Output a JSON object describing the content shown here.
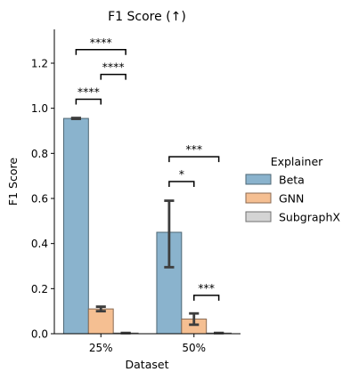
{
  "chart_data": {
    "type": "bar",
    "title": "F1 Score (↑)",
    "xlabel": "Dataset",
    "ylabel": "F1 Score",
    "ylim": [
      0,
      1.35
    ],
    "yticks": [
      0.0,
      0.2,
      0.4,
      0.6,
      0.8,
      1.0,
      1.2
    ],
    "ytick_labels": [
      "0.0",
      "0.2",
      "0.4",
      "0.6",
      "0.8",
      "1.0",
      "1.2"
    ],
    "categories": [
      "25%",
      "50%"
    ],
    "grid": false,
    "legend": {
      "title": "Explainer",
      "placement": "right"
    },
    "series": [
      {
        "name": "Beta",
        "color": "#8ab3cd",
        "edge": "#4e6774",
        "values": [
          0.955,
          0.45
        ],
        "errors": [
          [
            0.953,
            0.957
          ],
          [
            0.295,
            0.59
          ]
        ]
      },
      {
        "name": "GNN",
        "color": "#f5bf92",
        "edge": "#8a6a52",
        "values": [
          0.11,
          0.065
        ],
        "errors": [
          [
            0.1,
            0.12
          ],
          [
            0.04,
            0.09
          ]
        ]
      },
      {
        "name": "SubgraphX",
        "color": "#d4d4d4",
        "edge": "#707070",
        "values": [
          0.003,
          0.003
        ],
        "errors": [
          [
            0.003,
            0.003
          ],
          [
            0.003,
            0.003
          ]
        ]
      }
    ],
    "annotations": [
      {
        "category": 0,
        "from": 0,
        "to": 1,
        "y": 1.04,
        "label": "****"
      },
      {
        "category": 0,
        "from": 1,
        "to": 2,
        "y": 1.15,
        "label": "****"
      },
      {
        "category": 0,
        "from": 0,
        "to": 2,
        "y": 1.26,
        "label": "****"
      },
      {
        "category": 1,
        "from": 0,
        "to": 1,
        "y": 0.675,
        "label": "*"
      },
      {
        "category": 1,
        "from": 0,
        "to": 2,
        "y": 0.785,
        "label": "***"
      },
      {
        "category": 1,
        "from": 1,
        "to": 2,
        "y": 0.17,
        "label": "***"
      }
    ]
  }
}
